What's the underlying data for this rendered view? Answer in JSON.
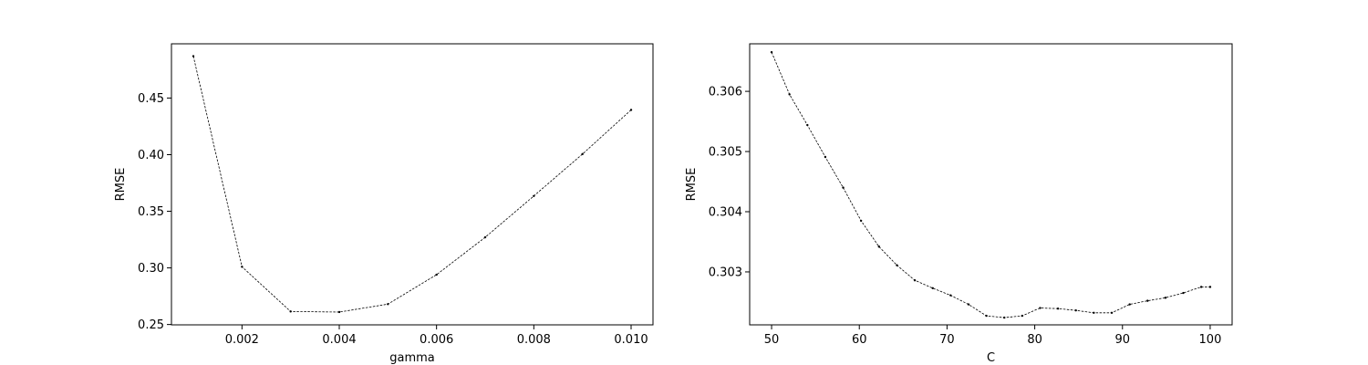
{
  "chart_data": [
    {
      "type": "line",
      "xlabel": "gamma",
      "ylabel": "RMSE",
      "xlim": [
        0.00055,
        0.01045
      ],
      "ylim": [
        0.2497,
        0.4979
      ],
      "xticks": [
        0.002,
        0.004,
        0.006,
        0.008,
        0.01
      ],
      "xtick_labels": [
        "0.002",
        "0.004",
        "0.006",
        "0.008",
        "0.010"
      ],
      "yticks": [
        0.25,
        0.3,
        0.35,
        0.4,
        0.45
      ],
      "ytick_labels": [
        "0.25",
        "0.30",
        "0.35",
        "0.40",
        "0.45"
      ],
      "line_style": "dashed",
      "marker": "dot",
      "color": "#000000",
      "series": [
        {
          "x": [
            0.001,
            0.002,
            0.003,
            0.004,
            0.005,
            0.006,
            0.007,
            0.008,
            0.009,
            0.01
          ],
          "y": [
            0.487,
            0.301,
            0.2615,
            0.261,
            0.268,
            0.294,
            0.327,
            0.3635,
            0.4005,
            0.4395
          ]
        }
      ]
    },
    {
      "type": "line",
      "xlabel": "C",
      "ylabel": "RMSE",
      "xlim": [
        47.5,
        102.5
      ],
      "ylim": [
        0.30212,
        0.30679
      ],
      "xticks": [
        50,
        60,
        70,
        80,
        90,
        100
      ],
      "xtick_labels": [
        "50",
        "60",
        "70",
        "80",
        "90",
        "100"
      ],
      "yticks": [
        0.303,
        0.304,
        0.305,
        0.306
      ],
      "ytick_labels": [
        "0.303",
        "0.304",
        "0.305",
        "0.306"
      ],
      "line_style": "dashed",
      "marker": "dot",
      "color": "#000000",
      "series": [
        {
          "x": [
            50,
            52.04,
            54.08,
            56.12,
            58.16,
            60.2,
            62.24,
            64.29,
            66.33,
            68.37,
            70.41,
            72.45,
            74.49,
            76.53,
            78.57,
            80.61,
            82.65,
            84.69,
            86.73,
            88.78,
            90.82,
            92.86,
            94.9,
            96.94,
            98.98,
            100
          ],
          "y": [
            0.30665,
            0.30595,
            0.30544,
            0.30491,
            0.3044,
            0.30385,
            0.30342,
            0.30311,
            0.30286,
            0.30273,
            0.30261,
            0.30246,
            0.30227,
            0.30224,
            0.30227,
            0.3024,
            0.30239,
            0.30236,
            0.30232,
            0.30232,
            0.30246,
            0.30252,
            0.30257,
            0.30265,
            0.30275,
            0.30275
          ]
        }
      ]
    }
  ]
}
